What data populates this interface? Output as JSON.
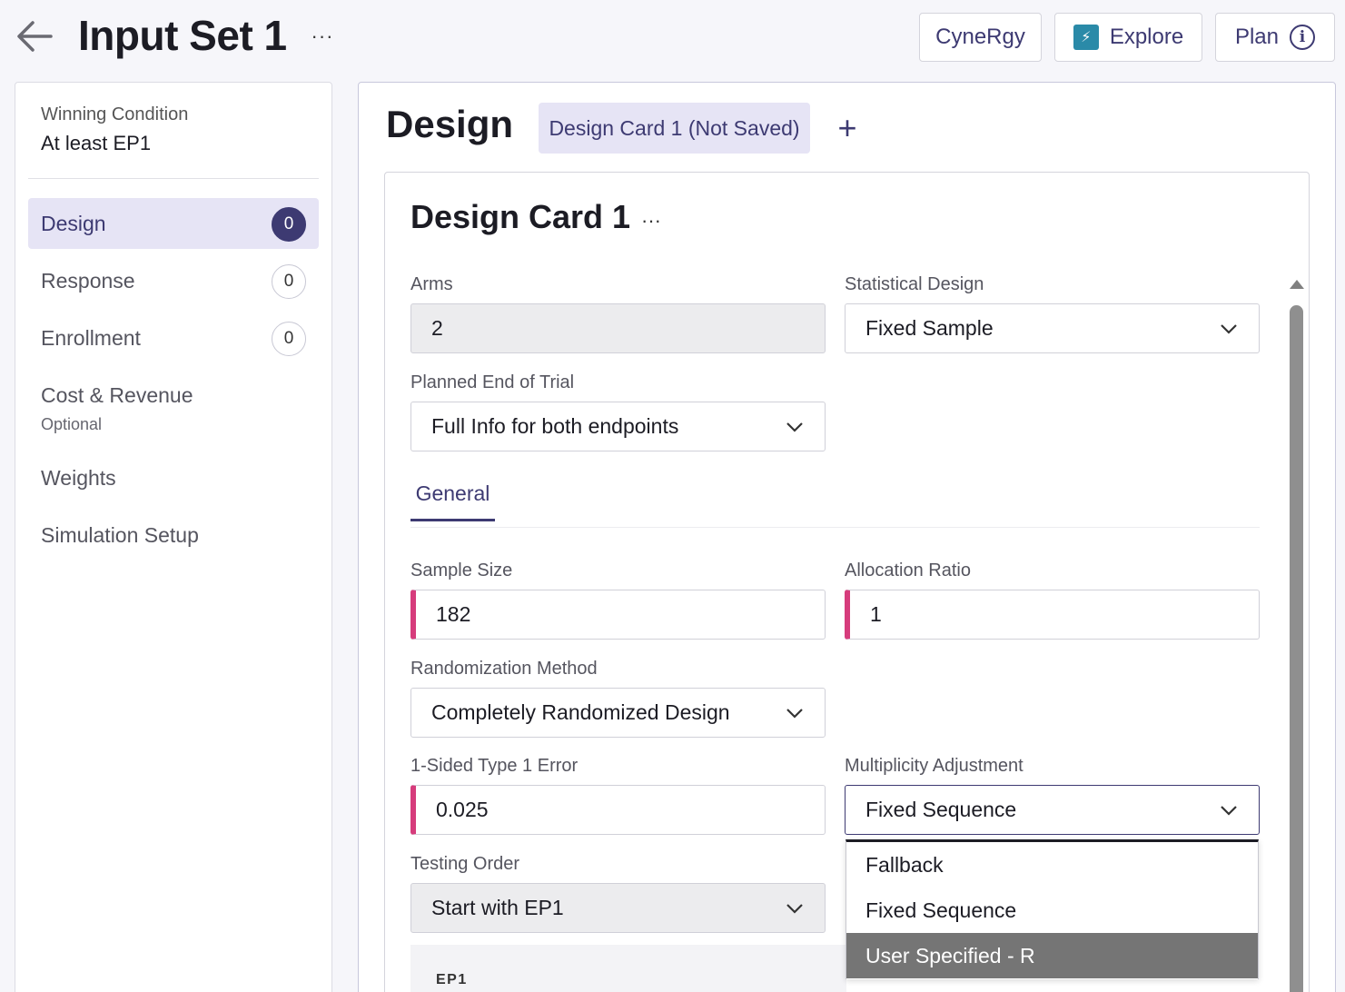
{
  "header": {
    "title": "Input Set 1",
    "more": "···",
    "buttons": {
      "cynergy": "CyneRgy",
      "explore": "Explore",
      "plan": "Plan"
    }
  },
  "sidebar": {
    "winning_condition_label": "Winning Condition",
    "winning_condition_value": "At least EP1",
    "items": [
      {
        "label": "Design",
        "badge": "0"
      },
      {
        "label": "Response",
        "badge": "0"
      },
      {
        "label": "Enrollment",
        "badge": "0"
      },
      {
        "label": "Cost & Revenue",
        "sub": "Optional"
      },
      {
        "label": "Weights"
      },
      {
        "label": "Simulation Setup"
      }
    ]
  },
  "main": {
    "title": "Design",
    "tab_label": "Design Card 1 (Not Saved)",
    "add_tab": "+",
    "card": {
      "title": "Design Card 1",
      "more": "···",
      "arms_label": "Arms",
      "arms_value": "2",
      "stat_design_label": "Statistical Design",
      "stat_design_value": "Fixed Sample",
      "planned_end_label": "Planned End of Trial",
      "planned_end_value": "Full Info for both endpoints",
      "tab_general": "General",
      "sample_size_label": "Sample Size",
      "sample_size_value": "182",
      "allocation_label": "Allocation Ratio",
      "allocation_value": "1",
      "randomization_label": "Randomization Method",
      "randomization_value": "Completely Randomized Design",
      "type1_label": "1-Sided Type 1 Error",
      "type1_value": "0.025",
      "multiplicity_label": "Multiplicity Adjustment",
      "multiplicity_value": "Fixed Sequence",
      "multiplicity_options": [
        "Fallback",
        "Fixed Sequence",
        "User Specified - R"
      ],
      "testing_order_label": "Testing Order",
      "testing_order_value": "Start with EP1",
      "ep_label": "EP1"
    }
  },
  "colors": {
    "accent": "#3d3a72",
    "required": "#d63c7c",
    "highlight": "#757575"
  }
}
